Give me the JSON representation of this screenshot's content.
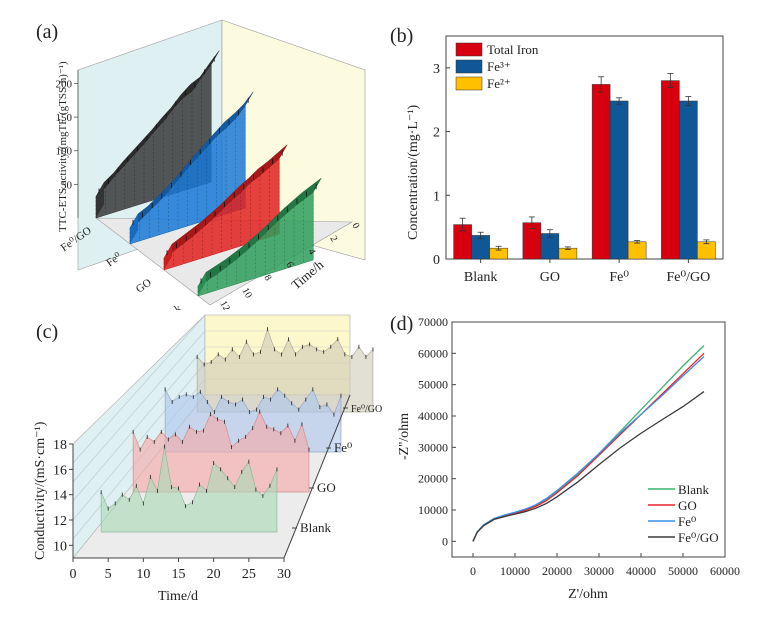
{
  "chart_data": [
    {
      "id": "a",
      "panel_label": "(a)",
      "type": "bar",
      "subtype": "3d-stepped-area",
      "ylabel": "TTC-ETS activity/(mgTF·(gTSS·h)⁻¹)",
      "xlabel": "Time/h",
      "ylim": [
        0,
        220
      ],
      "yticks": [
        "50",
        "100",
        "150",
        "200"
      ],
      "xticks": [
        "0",
        "2",
        "4",
        "6",
        "8",
        "10",
        "12"
      ],
      "categories": [
        "Fe⁰/GO",
        "Fe⁰",
        "GO",
        "Blank"
      ],
      "x": [
        0,
        1,
        2,
        3,
        4,
        5,
        6,
        7,
        8,
        9,
        10,
        11,
        12
      ],
      "series": [
        {
          "name": "Fe⁰/GO",
          "color": "#3a3a3a",
          "values": [
            40,
            52,
            68,
            82,
            96,
            110,
            126,
            140,
            158,
            172,
            180,
            200,
            218
          ]
        },
        {
          "name": "Fe⁰",
          "color": "#1a78d6",
          "values": [
            30,
            38,
            50,
            62,
            76,
            92,
            108,
            122,
            136,
            150,
            160,
            172,
            190
          ]
        },
        {
          "name": "GO",
          "color": "#e02020",
          "values": [
            22,
            30,
            38,
            46,
            56,
            66,
            78,
            90,
            100,
            112,
            120,
            130,
            140
          ]
        },
        {
          "name": "Blank",
          "color": "#2e9e5a",
          "values": [
            18,
            24,
            30,
            38,
            46,
            56,
            66,
            78,
            90,
            100,
            110,
            118,
            126
          ]
        }
      ]
    },
    {
      "id": "b",
      "panel_label": "(b)",
      "type": "bar",
      "ylabel": "Concentration/(mg·L⁻¹)",
      "xlabel": "",
      "ylim": [
        0,
        3.5
      ],
      "yticks": [
        "0",
        "1",
        "2",
        "3"
      ],
      "categories": [
        "Blank",
        "GO",
        "Fe⁰",
        "Fe⁰/GO"
      ],
      "legend_position": "top-left",
      "series": [
        {
          "name": "Total Iron",
          "color": "#d7000f",
          "values": [
            0.54,
            0.57,
            2.74,
            2.8
          ],
          "errors": [
            0.1,
            0.09,
            0.12,
            0.11
          ]
        },
        {
          "name": "Fe³⁺",
          "color": "#0f5796",
          "values": [
            0.37,
            0.4,
            2.48,
            2.48
          ],
          "errors": [
            0.05,
            0.06,
            0.05,
            0.07
          ]
        },
        {
          "name": "Fe²⁺",
          "color": "#ffc000",
          "values": [
            0.17,
            0.17,
            0.27,
            0.27
          ],
          "errors": [
            0.03,
            0.02,
            0.02,
            0.03
          ]
        }
      ]
    },
    {
      "id": "c",
      "panel_label": "(c)",
      "type": "area",
      "subtype": "3d-ridge",
      "ylabel": "Conductivity/(mS·cm⁻¹)",
      "xlabel": "Time/d",
      "ylim": [
        9,
        18
      ],
      "xlim": [
        0,
        30
      ],
      "yticks": [
        "10",
        "12",
        "14",
        "16",
        "18"
      ],
      "xticks": [
        "0",
        "5",
        "10",
        "15",
        "20",
        "25",
        "30"
      ],
      "x": [
        4,
        5,
        6,
        7,
        8,
        9,
        10,
        11,
        12,
        13,
        14,
        15,
        16,
        17,
        18,
        19,
        20,
        21,
        22,
        23,
        24,
        25,
        26,
        27,
        28,
        29
      ],
      "series": [
        {
          "name": "Blank",
          "color": "#a8d8b5",
          "values": [
            14.2,
            12.9,
            13.3,
            14.0,
            13.6,
            14.7,
            13.3,
            15.4,
            14.3,
            17.8,
            14.6,
            14.5,
            13.1,
            13.4,
            14.8,
            14.3,
            16.5,
            16.0,
            15.3,
            14.6,
            15.8,
            16.6,
            14.4,
            13.9,
            14.7,
            16.0
          ]
        },
        {
          "name": "GO",
          "color": "#f7a7a7",
          "values": [
            15.8,
            14.4,
            15.4,
            15.0,
            15.8,
            15.2,
            15.6,
            15.0,
            16.2,
            15.8,
            15.9,
            17.2,
            16.8,
            16.6,
            14.6,
            15.1,
            15.4,
            16.1,
            17.4,
            16.2,
            16.0,
            15.7,
            16.3,
            15.1,
            16.4,
            14.4
          ]
        },
        {
          "name": "Fe⁰",
          "color": "#aec6ec",
          "values": [
            16.0,
            15.0,
            15.4,
            15.6,
            15.4,
            15.8,
            15.0,
            14.2,
            15.4,
            15.0,
            14.8,
            15.2,
            14.2,
            14.4,
            15.4,
            15.2,
            16.0,
            15.5,
            14.9,
            14.4,
            15.2,
            16.0,
            14.6,
            14.8,
            14.0,
            15.5
          ]
        },
        {
          "name": "Fe⁰/GO",
          "color": "#cfcab8",
          "values": [
            15.4,
            14.8,
            15.0,
            15.6,
            15.2,
            16.0,
            15.4,
            16.6,
            15.6,
            15.8,
            17.6,
            16.0,
            15.6,
            16.8,
            15.6,
            16.2,
            16.4,
            16.0,
            15.8,
            16.2,
            16.8,
            15.6,
            15.4,
            16.2,
            15.4,
            16.0
          ]
        }
      ]
    },
    {
      "id": "d",
      "panel_label": "(d)",
      "type": "line",
      "xlabel": "Z'/ohm",
      "ylabel": "-Z''/ohm",
      "xlim": [
        -5000,
        60000
      ],
      "ylim": [
        -5000,
        70000
      ],
      "xticks": [
        "0",
        "10000",
        "20000",
        "30000",
        "40000",
        "50000",
        "60000"
      ],
      "yticks": [
        "0",
        "10000",
        "20000",
        "30000",
        "40000",
        "50000",
        "60000",
        "70000"
      ],
      "legend_position": "bottom-right",
      "x": [
        0,
        1000,
        2500,
        5000,
        7500,
        10000,
        12500,
        15000,
        17500,
        20000,
        25000,
        30000,
        35000,
        40000,
        45000,
        50000,
        55000
      ],
      "series": [
        {
          "name": "Blank",
          "color": "#3cb46e",
          "values": [
            0,
            3000,
            5200,
            7200,
            8300,
            9200,
            10200,
            11500,
            13500,
            16000,
            21500,
            28000,
            35000,
            42000,
            49000,
            56000,
            62500
          ]
        },
        {
          "name": "GO",
          "color": "#e8202a",
          "values": [
            0,
            2900,
            5000,
            7000,
            8000,
            8900,
            9900,
            11200,
            13000,
            15500,
            21000,
            27500,
            34000,
            40500,
            47000,
            53500,
            60000
          ]
        },
        {
          "name": "Fe⁰",
          "color": "#3a8ee6",
          "values": [
            0,
            3000,
            5200,
            7300,
            8400,
            9300,
            10300,
            11700,
            13700,
            16200,
            21800,
            28000,
            34500,
            40500,
            46500,
            52800,
            59000
          ]
        },
        {
          "name": "Fe⁰/GO",
          "color": "#3a3a3a",
          "values": [
            0,
            2900,
            5000,
            7000,
            7900,
            8700,
            9500,
            10600,
            12100,
            14200,
            19000,
            24500,
            29800,
            34500,
            38800,
            43000,
            47800
          ]
        }
      ]
    }
  ]
}
